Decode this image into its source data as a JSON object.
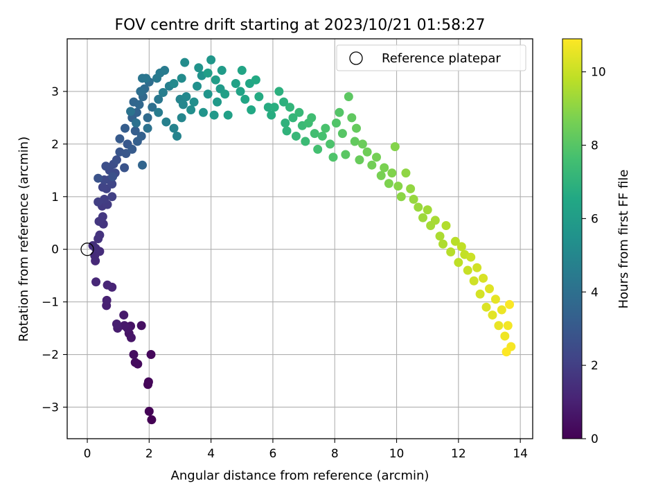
{
  "chart_data": {
    "type": "scatter",
    "title": "FOV centre drift starting at 2023/10/21 01:58:27",
    "xlabel": "Angular distance from reference (arcmin)",
    "ylabel": "Rotation from reference (arcmin)",
    "xlim": [
      -0.65,
      14.4
    ],
    "ylim": [
      -3.6,
      4.0
    ],
    "x_ticks": [
      0,
      2,
      4,
      6,
      8,
      10,
      12,
      14
    ],
    "y_ticks": [
      -3,
      -2,
      -1,
      0,
      1,
      2,
      3
    ],
    "grid": true,
    "legend": {
      "placement": "top-right",
      "entries": [
        "Reference platepar"
      ]
    },
    "reference_point": {
      "x": 0,
      "y": 0
    },
    "colorbar": {
      "label": "Hours from first FF file",
      "range": [
        0,
        10.9
      ],
      "ticks": [
        0,
        2,
        4,
        6,
        8,
        10
      ],
      "colormap": "viridis"
    },
    "series": [
      {
        "points": [
          [
            2.08,
            -3.24
          ],
          [
            2.0,
            -3.08
          ],
          [
            1.96,
            -2.57
          ],
          [
            1.98,
            -2.52
          ],
          [
            2.06,
            -2.0
          ],
          [
            1.63,
            -2.18
          ],
          [
            1.55,
            -2.15
          ],
          [
            1.5,
            -2.0
          ],
          [
            1.75,
            -1.45
          ],
          [
            1.4,
            -1.46
          ],
          [
            1.35,
            -1.6
          ],
          [
            1.42,
            -1.68
          ],
          [
            1.3,
            -1.5
          ],
          [
            1.2,
            -1.45
          ],
          [
            1.18,
            -1.25
          ],
          [
            0.98,
            -1.5
          ],
          [
            0.95,
            -1.42
          ],
          [
            0.62,
            -1.07
          ],
          [
            0.63,
            -0.97
          ],
          [
            0.8,
            -0.72
          ],
          [
            0.65,
            -0.68
          ],
          [
            0.28,
            -0.62
          ],
          [
            0.26,
            -0.22
          ],
          [
            0.24,
            -0.12
          ],
          [
            0.4,
            -0.04
          ],
          [
            0.27,
            0.02
          ],
          [
            0.18,
            0.07
          ],
          [
            0.35,
            0.2
          ],
          [
            0.4,
            0.27
          ],
          [
            0.52,
            0.48
          ],
          [
            0.38,
            0.53
          ],
          [
            0.5,
            0.62
          ],
          [
            0.48,
            0.82
          ],
          [
            0.65,
            0.85
          ],
          [
            0.55,
            0.95
          ],
          [
            0.35,
            0.9
          ],
          [
            0.8,
            1.0
          ],
          [
            0.62,
            1.15
          ],
          [
            0.5,
            1.18
          ],
          [
            0.8,
            1.24
          ],
          [
            0.7,
            1.32
          ],
          [
            0.55,
            1.32
          ],
          [
            0.9,
            1.45
          ],
          [
            0.72,
            1.5
          ],
          [
            0.85,
            1.62
          ],
          [
            0.6,
            1.58
          ],
          [
            0.95,
            1.7
          ],
          [
            0.82,
            1.38
          ],
          [
            0.35,
            1.35
          ],
          [
            1.2,
            1.55
          ],
          [
            1.05,
            1.85
          ],
          [
            1.25,
            1.82
          ],
          [
            1.3,
            2.0
          ],
          [
            1.05,
            2.1
          ],
          [
            1.45,
            1.9
          ],
          [
            1.22,
            2.3
          ],
          [
            1.55,
            2.25
          ],
          [
            1.62,
            2.05
          ],
          [
            1.75,
            2.15
          ],
          [
            1.45,
            2.5
          ],
          [
            1.6,
            2.6
          ],
          [
            1.78,
            1.6
          ],
          [
            1.5,
            2.8
          ],
          [
            1.68,
            2.75
          ],
          [
            1.8,
            2.9
          ],
          [
            1.95,
            2.5
          ],
          [
            1.85,
            3.05
          ],
          [
            2.0,
            3.18
          ],
          [
            1.72,
            3.0
          ],
          [
            2.1,
            2.7
          ],
          [
            1.58,
            2.4
          ],
          [
            1.95,
            2.3
          ],
          [
            1.4,
            2.62
          ],
          [
            1.78,
            3.25
          ],
          [
            1.9,
            3.25
          ],
          [
            2.3,
            2.85
          ],
          [
            2.25,
            3.25
          ],
          [
            2.35,
            3.35
          ],
          [
            2.5,
            3.4
          ],
          [
            2.3,
            2.6
          ],
          [
            2.45,
            2.98
          ],
          [
            2.65,
            3.1
          ],
          [
            2.55,
            2.42
          ],
          [
            2.8,
            2.3
          ],
          [
            2.9,
            2.15
          ],
          [
            3.0,
            2.85
          ],
          [
            3.05,
            2.5
          ],
          [
            3.1,
            2.75
          ],
          [
            3.2,
            2.9
          ],
          [
            2.8,
            3.15
          ],
          [
            3.05,
            3.25
          ],
          [
            3.15,
            3.55
          ],
          [
            3.35,
            2.65
          ],
          [
            3.45,
            2.8
          ],
          [
            3.55,
            3.1
          ],
          [
            3.7,
            3.3
          ],
          [
            3.6,
            3.45
          ],
          [
            3.75,
            2.6
          ],
          [
            3.9,
            2.95
          ],
          [
            4.0,
            3.6
          ],
          [
            4.1,
            2.55
          ],
          [
            4.2,
            2.8
          ],
          [
            4.3,
            3.05
          ],
          [
            4.35,
            3.4
          ],
          [
            4.15,
            3.22
          ],
          [
            3.9,
            3.35
          ],
          [
            4.45,
            2.95
          ],
          [
            4.55,
            2.55
          ],
          [
            4.8,
            3.15
          ],
          [
            4.95,
            3.0
          ],
          [
            5.0,
            3.4
          ],
          [
            5.1,
            2.85
          ],
          [
            5.25,
            3.15
          ],
          [
            5.3,
            2.65
          ],
          [
            5.45,
            3.22
          ],
          [
            5.55,
            2.9
          ],
          [
            5.85,
            2.7
          ],
          [
            5.95,
            2.55
          ],
          [
            6.05,
            2.7
          ],
          [
            6.2,
            3.0
          ],
          [
            6.35,
            2.8
          ],
          [
            6.4,
            2.4
          ],
          [
            6.45,
            2.25
          ],
          [
            6.55,
            2.7
          ],
          [
            6.65,
            2.5
          ],
          [
            6.75,
            2.15
          ],
          [
            6.85,
            2.6
          ],
          [
            6.95,
            2.35
          ],
          [
            7.05,
            2.05
          ],
          [
            7.15,
            2.4
          ],
          [
            7.25,
            2.5
          ],
          [
            7.35,
            2.2
          ],
          [
            7.45,
            1.9
          ],
          [
            7.6,
            2.15
          ],
          [
            7.7,
            2.3
          ],
          [
            7.85,
            2.0
          ],
          [
            7.95,
            1.75
          ],
          [
            8.05,
            2.4
          ],
          [
            8.15,
            2.6
          ],
          [
            8.25,
            2.2
          ],
          [
            8.35,
            1.8
          ],
          [
            8.45,
            2.9
          ],
          [
            8.55,
            2.5
          ],
          [
            8.65,
            2.05
          ],
          [
            8.7,
            2.3
          ],
          [
            8.8,
            1.7
          ],
          [
            8.9,
            2.0
          ],
          [
            9.05,
            1.85
          ],
          [
            9.2,
            1.6
          ],
          [
            9.35,
            1.75
          ],
          [
            9.5,
            1.4
          ],
          [
            9.6,
            1.55
          ],
          [
            9.75,
            1.25
          ],
          [
            9.85,
            1.45
          ],
          [
            9.95,
            1.95
          ],
          [
            10.05,
            1.2
          ],
          [
            10.15,
            1.0
          ],
          [
            10.3,
            1.45
          ],
          [
            10.45,
            1.15
          ],
          [
            10.55,
            0.95
          ],
          [
            10.7,
            0.8
          ],
          [
            10.85,
            0.6
          ],
          [
            11.0,
            0.75
          ],
          [
            11.1,
            0.45
          ],
          [
            11.25,
            0.55
          ],
          [
            11.4,
            0.25
          ],
          [
            11.5,
            0.1
          ],
          [
            11.6,
            0.45
          ],
          [
            11.75,
            -0.05
          ],
          [
            11.9,
            0.15
          ],
          [
            12.0,
            -0.25
          ],
          [
            12.1,
            0.05
          ],
          [
            12.2,
            -0.1
          ],
          [
            12.3,
            -0.4
          ],
          [
            12.4,
            -0.15
          ],
          [
            12.5,
            -0.6
          ],
          [
            12.6,
            -0.35
          ],
          [
            12.7,
            -0.85
          ],
          [
            12.8,
            -0.55
          ],
          [
            12.9,
            -1.1
          ],
          [
            13.0,
            -0.75
          ],
          [
            13.1,
            -1.25
          ],
          [
            13.2,
            -0.95
          ],
          [
            13.3,
            -1.45
          ],
          [
            13.4,
            -1.15
          ],
          [
            13.5,
            -1.65
          ],
          [
            13.6,
            -1.45
          ],
          [
            13.7,
            -1.85
          ],
          [
            13.65,
            -1.05
          ],
          [
            13.55,
            -1.95
          ]
        ]
      }
    ]
  }
}
